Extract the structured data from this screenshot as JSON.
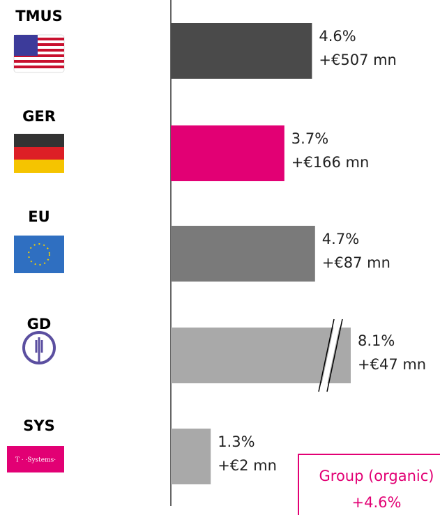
{
  "chart_data": {
    "type": "hbar",
    "categories": [
      "TMUS",
      "GER",
      "EU",
      "GD",
      "SYS"
    ],
    "values": [
      4.6,
      3.7,
      4.7,
      8.1,
      1.3
    ],
    "value_labels": [
      "4.6%",
      "3.7%",
      "4.7%",
      "8.1%",
      "1.3%"
    ],
    "amount_labels": [
      "+€507 mn",
      "+€166 mn",
      "+€87 mn",
      "+€47 mn",
      "+€2 mn"
    ],
    "colors": [
      "#4a4a4a",
      "#e20074",
      "#7a7a7a",
      "#a9a9a9",
      "#a9a9a9"
    ],
    "xlim": [
      0,
      6
    ],
    "axis_break": true,
    "logo_text": "T · ·Systems·",
    "annotation": {
      "title": "Group (organic)",
      "value_label": "+4.6%"
    }
  }
}
